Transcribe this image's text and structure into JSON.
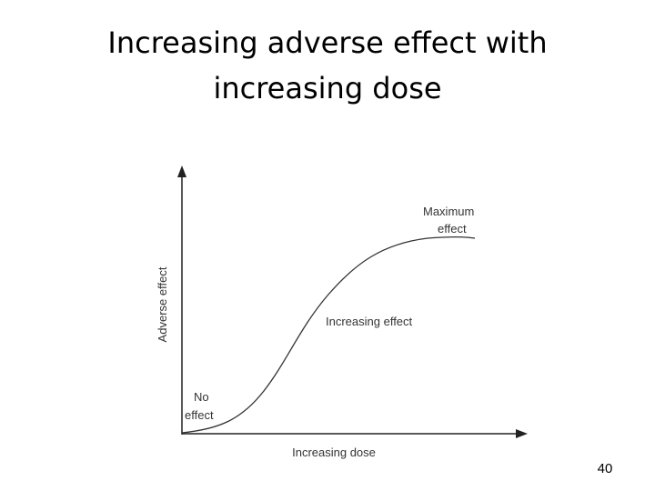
{
  "slide": {
    "title": [
      "Increasing adverse effect with",
      "increasing dose"
    ],
    "diagram": {
      "y_axis_label": "Adverse effect",
      "x_axis_label": "Increasing dose",
      "labels": {
        "maximum_effect": [
          "Maximum",
          "effect"
        ],
        "increasing_effect": "Increasing effect",
        "no_effect": [
          "No",
          "effect"
        ]
      }
    },
    "page_number": "40"
  }
}
